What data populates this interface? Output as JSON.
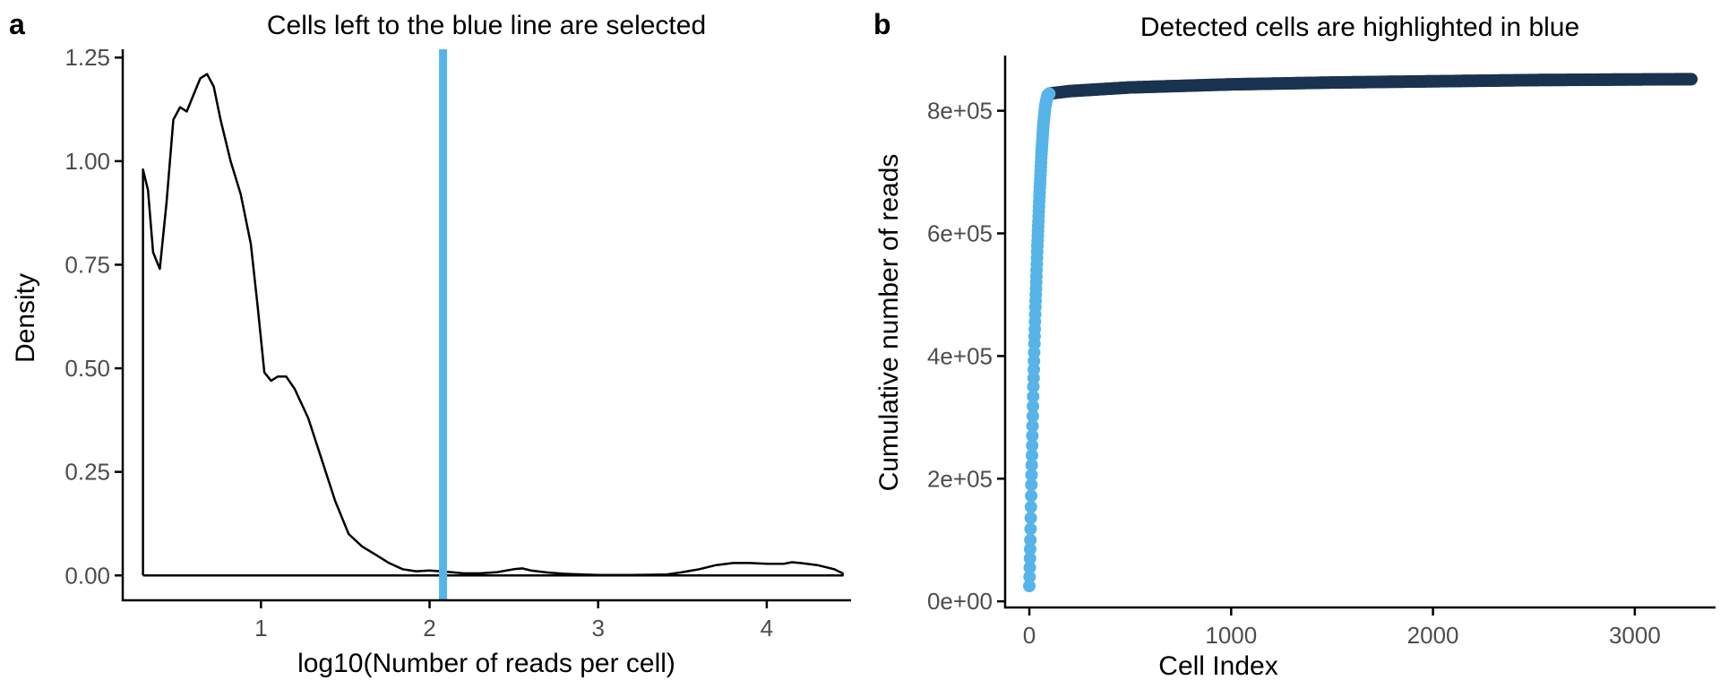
{
  "chart_data": [
    {
      "panel": "a",
      "type": "line",
      "title": "Cells left to the blue line are selected",
      "xlabel": "log10(Number of reads per cell)",
      "ylabel": "Density",
      "xlim": [
        0.18,
        4.5
      ],
      "ylim": [
        -0.06,
        1.27
      ],
      "x_ticks": [
        1,
        2,
        3,
        4
      ],
      "x_tick_labels": [
        "1",
        "2",
        "3",
        "4"
      ],
      "y_ticks": [
        0,
        0.25,
        0.5,
        0.75,
        1.0,
        1.25
      ],
      "y_tick_labels": [
        "0.00",
        "0.25",
        "0.50",
        "0.75",
        "1.00",
        "1.25"
      ],
      "grid": false,
      "threshold_line": {
        "x": 2.08,
        "color": "#56B4E9"
      },
      "line_color": "#000000",
      "series": [
        {
          "x": [
            0.3,
            0.3,
            0.33,
            0.36,
            0.4,
            0.44,
            0.48,
            0.52,
            0.56,
            0.6,
            0.64,
            0.68,
            0.72,
            0.76,
            0.82,
            0.88,
            0.94,
            0.98,
            1.02,
            1.06,
            1.1,
            1.15,
            1.2,
            1.28,
            1.36,
            1.44,
            1.52,
            1.6,
            1.68,
            1.76,
            1.84,
            1.92,
            2.0,
            2.1,
            2.2,
            2.3,
            2.4,
            2.5,
            2.55,
            2.6,
            2.7,
            2.8,
            3.0,
            3.2,
            3.4,
            3.5,
            3.6,
            3.7,
            3.8,
            3.9,
            4.0,
            4.1,
            4.15,
            4.2,
            4.3,
            4.4,
            4.45,
            4.45,
            0.3
          ],
          "y": [
            0.0,
            0.98,
            0.93,
            0.78,
            0.74,
            0.9,
            1.1,
            1.13,
            1.12,
            1.16,
            1.2,
            1.21,
            1.18,
            1.1,
            1.0,
            0.92,
            0.8,
            0.65,
            0.49,
            0.47,
            0.48,
            0.48,
            0.45,
            0.38,
            0.28,
            0.18,
            0.1,
            0.07,
            0.05,
            0.03,
            0.015,
            0.01,
            0.012,
            0.009,
            0.005,
            0.005,
            0.008,
            0.015,
            0.017,
            0.012,
            0.007,
            0.004,
            0.001,
            0.001,
            0.002,
            0.008,
            0.015,
            0.025,
            0.03,
            0.03,
            0.028,
            0.028,
            0.032,
            0.03,
            0.025,
            0.015,
            0.005,
            0.0,
            0.0
          ]
        }
      ]
    },
    {
      "panel": "b",
      "type": "scatter",
      "title": "Detected cells are highlighted in blue",
      "xlabel": "Cell Index",
      "ylabel": "Cumulative number of reads",
      "xlim": [
        -120,
        3400
      ],
      "ylim": [
        -10000,
        890000
      ],
      "x_ticks": [
        0,
        1000,
        2000,
        3000
      ],
      "x_tick_labels": [
        "0",
        "1000",
        "2000",
        "3000"
      ],
      "y_ticks": [
        0,
        200000,
        400000,
        600000,
        800000
      ],
      "y_tick_labels": [
        "0e+00",
        "2e+05",
        "4e+05",
        "6e+05",
        "8e+05"
      ],
      "grid": false,
      "colors": {
        "detected": "#56B4E9",
        "undetected": "#1A3350"
      },
      "detected_cells": 100,
      "total_cells": 3280,
      "curve": {
        "x": [
          0,
          5,
          10,
          15,
          20,
          25,
          30,
          40,
          50,
          60,
          70,
          80,
          90,
          100,
          200,
          500,
          1000,
          1500,
          2000,
          2500,
          3000,
          3280
        ],
        "y": [
          25000,
          100000,
          190000,
          270000,
          350000,
          420000,
          480000,
          580000,
          660000,
          730000,
          780000,
          810000,
          825000,
          828000,
          832000,
          838000,
          843000,
          846000,
          848000,
          850000,
          851000,
          851500
        ]
      }
    }
  ]
}
